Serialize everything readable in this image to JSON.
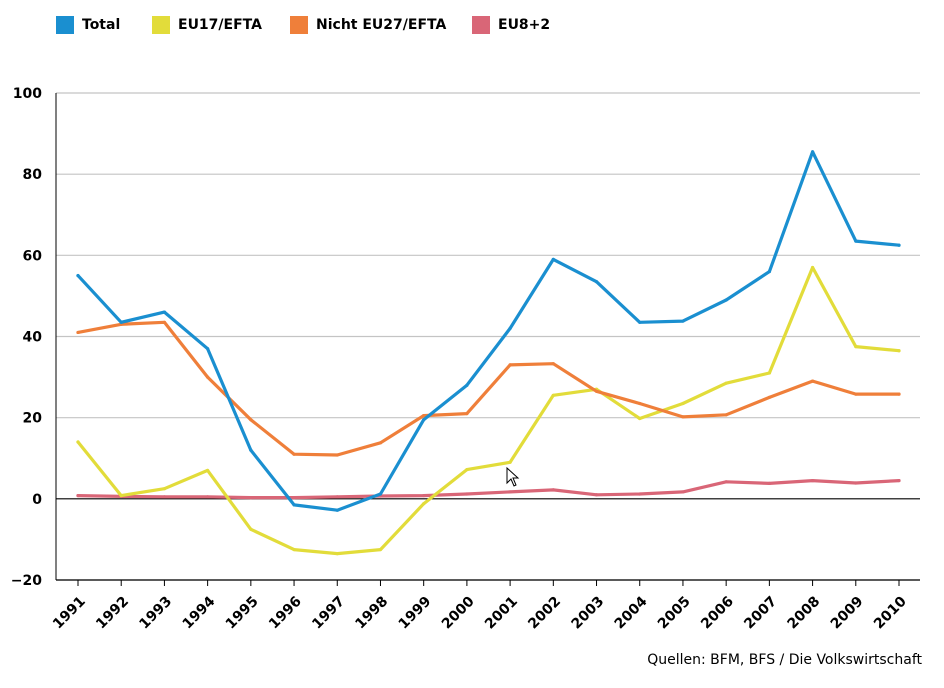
{
  "chart_data": {
    "type": "line",
    "categories": [
      "1991",
      "1992",
      "1993",
      "1994",
      "1995",
      "1996",
      "1997",
      "1998",
      "1999",
      "2000",
      "2001",
      "2002",
      "2003",
      "2004",
      "2005",
      "2006",
      "2007",
      "2008",
      "2009",
      "2010"
    ],
    "series": [
      {
        "name": "Total",
        "color": "#1a8fd0",
        "values": [
          55,
          43.5,
          46,
          37,
          12,
          -1.5,
          -2.8,
          1.2,
          19.5,
          28,
          42,
          59,
          53.5,
          43.5,
          43.8,
          49,
          56,
          85.5,
          63.5,
          62.5
        ]
      },
      {
        "name": "EU17/EFTA",
        "color": "#e2dc3a",
        "values": [
          14,
          0.8,
          2.5,
          7,
          -7.5,
          -12.5,
          -13.5,
          -12.5,
          -1.2,
          7.2,
          9,
          25.5,
          27,
          19.8,
          23.5,
          28.5,
          31,
          57,
          37.5,
          36.5
        ]
      },
      {
        "name": "Nicht EU27/EFTA",
        "color": "#ef7f3a",
        "values": [
          41,
          43,
          43.5,
          30,
          19.5,
          11,
          10.8,
          13.8,
          20.5,
          21,
          33,
          33.3,
          26.5,
          23.5,
          20.2,
          20.7,
          25,
          29,
          25.8,
          25.8
        ]
      },
      {
        "name": "EU8+2",
        "color": "#d96677",
        "values": [
          0.8,
          0.6,
          0.5,
          0.5,
          0.3,
          0.3,
          0.5,
          0.7,
          0.8,
          1.2,
          1.7,
          2.2,
          1.0,
          1.2,
          1.7,
          4.2,
          3.8,
          4.5,
          3.9,
          4.5
        ]
      }
    ],
    "yticks": [
      100,
      80,
      60,
      40,
      20,
      0,
      -20
    ],
    "ylim": [
      -20,
      100
    ],
    "grid": true,
    "legend_position": "top-left"
  },
  "legend_labels": [
    "Total",
    "EU17/EFTA",
    "Nicht EU27/EFTA",
    "EU8+2"
  ],
  "source": "Quellen: BFM, BFS / Die Volkswirtschaft"
}
